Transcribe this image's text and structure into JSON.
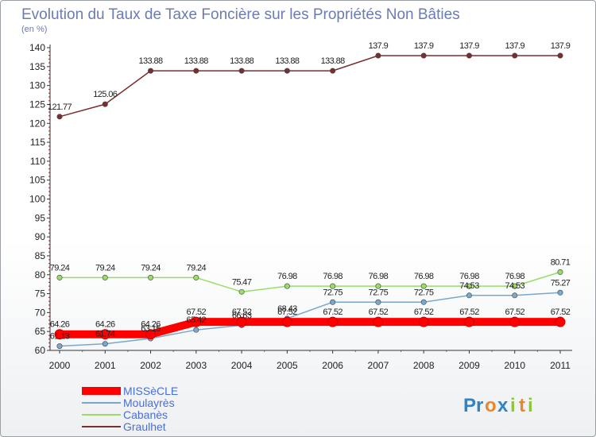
{
  "chart_data": {
    "type": "line",
    "title": "Evolution du Taux de Taxe Foncière sur les Propriétés Non Bâties",
    "ylabel": "(en %)",
    "xlabel": "",
    "ylim": [
      60,
      140
    ],
    "yticks": [
      60,
      65,
      70,
      75,
      80,
      85,
      90,
      95,
      100,
      105,
      110,
      115,
      120,
      125,
      130,
      135,
      140
    ],
    "categories": [
      "2000",
      "2001",
      "2002",
      "2003",
      "2004",
      "2005",
      "2006",
      "2007",
      "2008",
      "2009",
      "2010",
      "2011"
    ],
    "series": [
      {
        "name": "Graulhet",
        "color": "#7a2e2e",
        "values": [
          121.77,
          125.06,
          133.88,
          133.88,
          133.88,
          133.88,
          133.88,
          137.9,
          137.9,
          137.9,
          137.9,
          137.9
        ],
        "labels": [
          "121.77",
          "125.06",
          "133.88",
          "133.88",
          "133.88",
          "133.88",
          "133.88",
          "137.9",
          "137.9",
          "137.9",
          "137.9",
          "137.9"
        ]
      },
      {
        "name": "Cabanès",
        "color": "#99dd66",
        "values": [
          79.24,
          79.24,
          79.24,
          79.24,
          75.47,
          76.98,
          76.98,
          76.98,
          76.98,
          76.98,
          76.98,
          80.71
        ],
        "labels": [
          "79.24",
          "79.24",
          "79.24",
          "79.24",
          "75.47",
          "76.98",
          "76.98",
          "76.98",
          "76.98",
          "76.98",
          "76.98",
          "80.71"
        ]
      },
      {
        "name": "Moulayrès",
        "color": "#7aa7cc",
        "values": [
          61.13,
          61.74,
          63.15,
          65.42,
          66.63,
          68.43,
          72.75,
          72.75,
          72.75,
          74.53,
          74.53,
          75.27
        ],
        "labels": [
          "61.13",
          "61.74",
          "63.15",
          "65.42",
          "66.63",
          "68.43",
          "72.75",
          "72.75",
          "72.75",
          "74.53",
          "74.53",
          "75.27"
        ]
      },
      {
        "name": "MISSèCLE",
        "color": "#ff0000",
        "values": [
          64.26,
          64.26,
          64.26,
          67.52,
          67.52,
          67.52,
          67.52,
          67.52,
          67.52,
          67.52,
          67.52,
          67.52
        ],
        "labels": [
          "64.26",
          "64.26",
          "64.26",
          "67.52",
          "67.52",
          "67.52",
          "67.52",
          "67.52",
          "67.52",
          "67.52",
          "67.52",
          "67.52"
        ]
      }
    ],
    "legend": [
      "MISSèCLE",
      "Moulayrès",
      "Cabanès",
      "Graulhet"
    ]
  },
  "logo": {
    "text": "Proxiti",
    "letters": [
      "P",
      "r",
      "o",
      "x",
      "i",
      "t",
      "i"
    ],
    "colors": [
      "#2f83c7",
      "#2f83c7",
      "#e8862a",
      "#2f83c7",
      "#8cc63f",
      "#e8862a",
      "#8cc63f"
    ]
  }
}
